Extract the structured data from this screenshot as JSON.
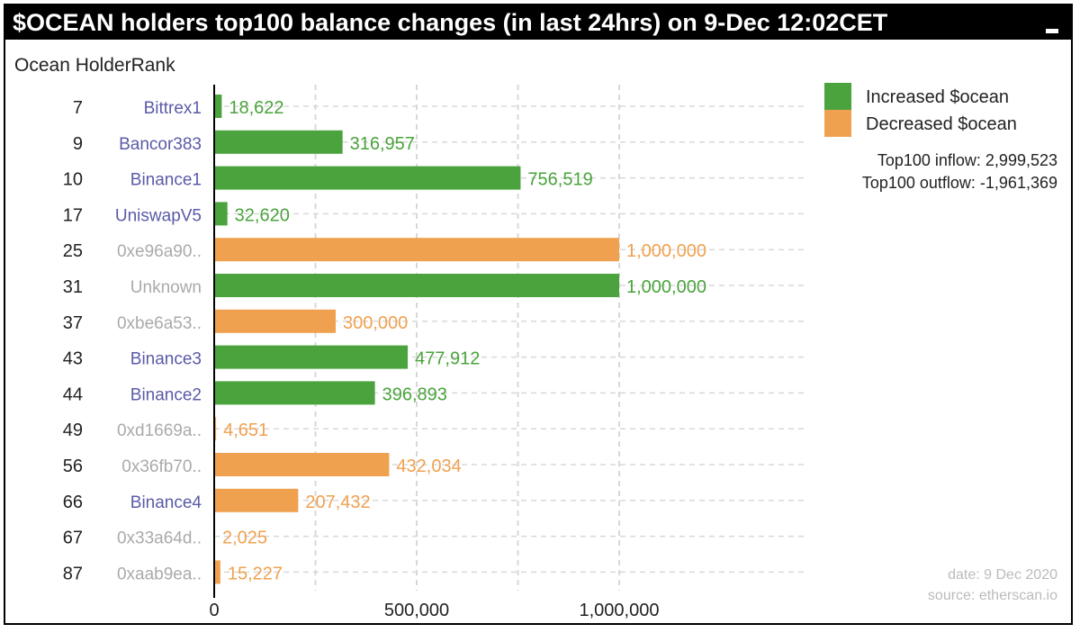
{
  "window": {
    "title": "$OCEAN holders top100 balance changes (in last 24hrs) on 9-Dec 12:02CET"
  },
  "chart_data": {
    "type": "bar",
    "orientation": "horizontal",
    "title": "$OCEAN holders top100 balance changes (in last 24hrs) on 9-Dec 12:02CET",
    "ylabel": "Ocean HolderRank",
    "xlabel": "",
    "xlim": [
      0,
      1400000
    ],
    "xticks": [
      0,
      500000,
      1000000
    ],
    "xtick_labels": [
      "0",
      "500,000",
      "1,000,000"
    ],
    "grid": true,
    "legend_position": "top-right",
    "legend": [
      {
        "label": "Increased $ocean",
        "color": "#4aa33c"
      },
      {
        "label": "Decreased $ocean",
        "color": "#f0a150"
      }
    ],
    "summary": {
      "inflow": "Top100 inflow: 2,999,523",
      "outflow": "Top100 outflow: -1,961,369"
    },
    "footer": {
      "date": "date: 9 Dec 2020",
      "source": "source: etherscan.io"
    },
    "colors": {
      "increase": "#4aa33c",
      "decrease": "#f0a150",
      "known_name": "#5a5aa8",
      "unknown_name": "#aaaaaa",
      "grid": "#d8d8d8"
    },
    "rows": [
      {
        "rank": "7",
        "name": "Bittrex1",
        "known": true,
        "direction": "increase",
        "value": 18622,
        "label": "18,622"
      },
      {
        "rank": "9",
        "name": "Bancor383",
        "known": true,
        "direction": "increase",
        "value": 316957,
        "label": "316,957"
      },
      {
        "rank": "10",
        "name": "Binance1",
        "known": true,
        "direction": "increase",
        "value": 756519,
        "label": "756,519"
      },
      {
        "rank": "17",
        "name": "UniswapV5",
        "known": true,
        "direction": "increase",
        "value": 32620,
        "label": "32,620"
      },
      {
        "rank": "25",
        "name": "0xe96a90..",
        "known": false,
        "direction": "decrease",
        "value": 1000000,
        "label": "1,000,000"
      },
      {
        "rank": "31",
        "name": "Unknown",
        "known": false,
        "direction": "increase",
        "value": 1000000,
        "label": "1,000,000"
      },
      {
        "rank": "37",
        "name": "0xbe6a53..",
        "known": false,
        "direction": "decrease",
        "value": 300000,
        "label": "300,000"
      },
      {
        "rank": "43",
        "name": "Binance3",
        "known": true,
        "direction": "increase",
        "value": 477912,
        "label": "477,912"
      },
      {
        "rank": "44",
        "name": "Binance2",
        "known": true,
        "direction": "increase",
        "value": 396893,
        "label": "396,893"
      },
      {
        "rank": "49",
        "name": "0xd1669a..",
        "known": false,
        "direction": "decrease",
        "value": 4651,
        "label": "4,651"
      },
      {
        "rank": "56",
        "name": "0x36fb70..",
        "known": false,
        "direction": "decrease",
        "value": 432034,
        "label": "432,034"
      },
      {
        "rank": "66",
        "name": "Binance4",
        "known": true,
        "direction": "decrease",
        "value": 207432,
        "label": "207,432"
      },
      {
        "rank": "67",
        "name": "0x33a64d..",
        "known": false,
        "direction": "decrease",
        "value": 2025,
        "label": "2,025"
      },
      {
        "rank": "87",
        "name": "0xaab9ea..",
        "known": false,
        "direction": "decrease",
        "value": 15227,
        "label": "15,227"
      }
    ]
  }
}
